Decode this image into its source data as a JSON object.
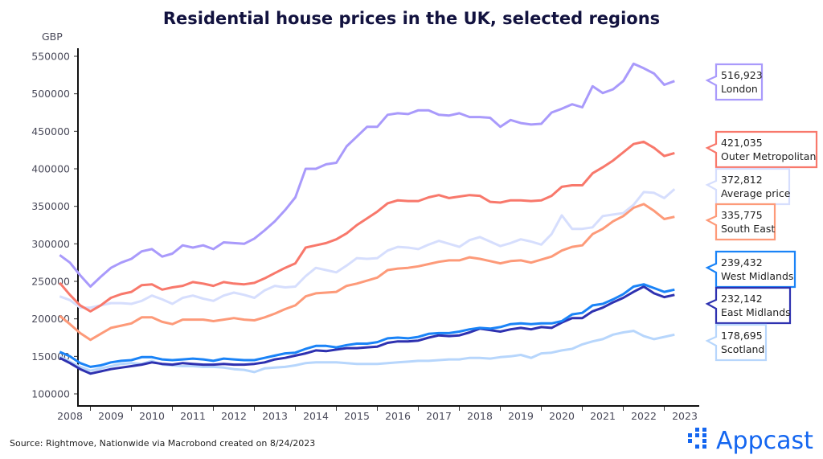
{
  "chart_data": {
    "type": "line",
    "title": "Residential house prices in the UK, selected regions",
    "ylabel": "GBP",
    "xlabel": "",
    "ylim": [
      100000,
      550000
    ],
    "yticks": [
      "100000",
      "150000",
      "200000",
      "250000",
      "300000",
      "350000",
      "400000",
      "450000",
      "500000",
      "550000"
    ],
    "xticks": [
      "2008",
      "2009",
      "2010",
      "2011",
      "2012",
      "2013",
      "2014",
      "2015",
      "2016",
      "2017",
      "2018",
      "2019",
      "2020",
      "2021",
      "2022",
      "2023"
    ],
    "x_start": 2008.25,
    "x_step": 0.25,
    "unit_multiplier": 1000,
    "grid": false,
    "legend": "right, end-of-line callouts",
    "series": [
      {
        "name": "London",
        "color": "#a99afb",
        "last_value": "516,923",
        "values": [
          285,
          275,
          258,
          243,
          256,
          268,
          275,
          280,
          290,
          293,
          283,
          287,
          298,
          295,
          298,
          293,
          302,
          301,
          300,
          307,
          318,
          330,
          345,
          362,
          400,
          400,
          406,
          408,
          430,
          443,
          456,
          456,
          472,
          474,
          473,
          478,
          478,
          472,
          471,
          474,
          469,
          469,
          468,
          456,
          465,
          461,
          459,
          460,
          475,
          480,
          486,
          482,
          510,
          501,
          506,
          517,
          540,
          534,
          527,
          512,
          517
        ]
      },
      {
        "name": "Outer Metropolitan",
        "color": "#f8786b",
        "last_value": "421,035",
        "values": [
          248,
          232,
          218,
          210,
          218,
          228,
          233,
          236,
          245,
          246,
          239,
          242,
          244,
          249,
          247,
          244,
          249,
          247,
          246,
          248,
          254,
          261,
          268,
          274,
          295,
          298,
          301,
          306,
          314,
          325,
          334,
          343,
          354,
          358,
          357,
          357,
          362,
          365,
          361,
          363,
          365,
          364,
          356,
          355,
          358,
          358,
          357,
          358,
          364,
          376,
          378,
          378,
          394,
          402,
          411,
          422,
          433,
          436,
          428,
          417,
          421
        ]
      },
      {
        "name": "Average price",
        "color": "#d6defd",
        "last_value": "372,812",
        "values": [
          230,
          225,
          215,
          215,
          218,
          221,
          221,
          220,
          224,
          231,
          226,
          220,
          228,
          231,
          227,
          224,
          231,
          235,
          232,
          228,
          238,
          244,
          242,
          243,
          257,
          268,
          265,
          262,
          271,
          281,
          280,
          281,
          291,
          296,
          295,
          293,
          299,
          304,
          300,
          296,
          305,
          309,
          303,
          297,
          301,
          306,
          303,
          299,
          313,
          338,
          320,
          320,
          322,
          337,
          339,
          341,
          352,
          369,
          368,
          361,
          373
        ]
      },
      {
        "name": "South East",
        "color": "#fd9a79",
        "last_value": "335,775",
        "values": [
          204,
          193,
          181,
          172,
          180,
          188,
          191,
          194,
          202,
          202,
          196,
          193,
          199,
          199,
          199,
          197,
          199,
          201,
          199,
          198,
          202,
          207,
          213,
          218,
          230,
          234,
          235,
          236,
          244,
          247,
          251,
          255,
          265,
          267,
          268,
          270,
          273,
          276,
          278,
          278,
          282,
          280,
          277,
          274,
          277,
          278,
          275,
          279,
          283,
          291,
          296,
          298,
          313,
          320,
          330,
          337,
          348,
          353,
          344,
          333,
          336
        ]
      },
      {
        "name": "West Midlands",
        "color": "#1a83f7",
        "last_value": "239,432",
        "values": [
          156,
          150,
          141,
          136,
          138,
          142,
          144,
          145,
          149,
          149,
          146,
          145,
          146,
          147,
          146,
          144,
          147,
          146,
          145,
          145,
          148,
          151,
          154,
          155,
          160,
          164,
          164,
          162,
          165,
          167,
          167,
          169,
          174,
          175,
          174,
          176,
          180,
          181,
          181,
          183,
          186,
          188,
          187,
          189,
          193,
          194,
          193,
          194,
          194,
          197,
          206,
          208,
          218,
          220,
          226,
          233,
          243,
          246,
          241,
          236,
          239
        ]
      },
      {
        "name": "East Midlands",
        "color": "#2e31b0",
        "last_value": "232,142",
        "values": [
          148,
          141,
          133,
          127,
          130,
          133,
          135,
          137,
          139,
          142,
          140,
          139,
          141,
          140,
          139,
          139,
          140,
          139,
          139,
          140,
          142,
          146,
          148,
          151,
          154,
          158,
          157,
          159,
          161,
          161,
          162,
          163,
          168,
          170,
          170,
          171,
          175,
          178,
          177,
          178,
          182,
          187,
          185,
          183,
          186,
          188,
          186,
          189,
          188,
          195,
          201,
          201,
          210,
          215,
          222,
          228,
          236,
          243,
          234,
          229,
          232
        ]
      },
      {
        "name": "Scotland",
        "color": "#b7d6fc",
        "last_value": "178,695",
        "values": [
          150,
          143,
          136,
          131,
          134,
          137,
          140,
          141,
          140,
          144,
          139,
          138,
          137,
          137,
          136,
          136,
          135,
          133,
          132,
          129,
          134,
          135,
          136,
          138,
          141,
          142,
          142,
          142,
          141,
          140,
          140,
          140,
          141,
          142,
          143,
          144,
          144,
          145,
          146,
          146,
          148,
          148,
          147,
          149,
          150,
          152,
          148,
          154,
          155,
          158,
          160,
          166,
          170,
          173,
          179,
          182,
          184,
          177,
          173,
          176,
          179
        ]
      }
    ]
  },
  "footer": {
    "source": "Source: Rightmove, Nationwide via Macrobond created on 8/24/2023",
    "logo": "Appcast"
  }
}
